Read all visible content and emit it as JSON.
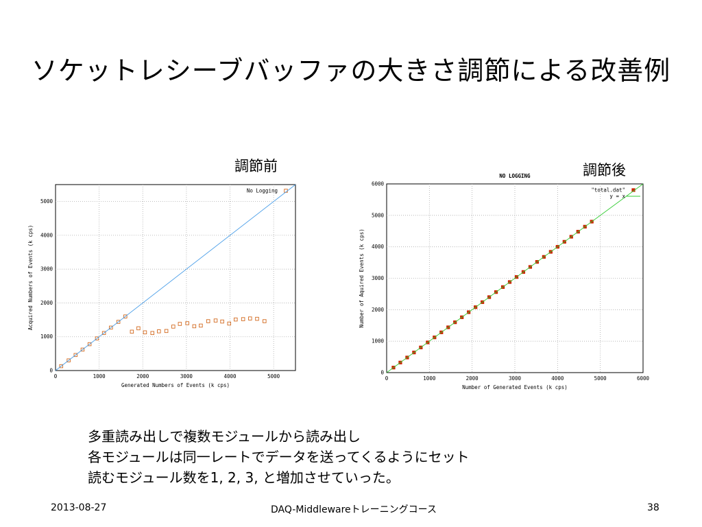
{
  "slide": {
    "title": "ソケットレシーブバッファの大きさ調節による改善例",
    "label_before": "調節前",
    "label_after": "調節後",
    "bullets": [
      "多重読み出しで複数モジュールから読み出し",
      "各モジュールは同一レートでデータを送ってくるようにセット",
      "読むモジュール数を1, 2, 3, と増加させていった。"
    ],
    "footer": {
      "date": "2013-08-27",
      "center": "DAQ-Middlewareトレーニングコース",
      "page": "38"
    }
  },
  "chart_data": [
    {
      "type": "scatter",
      "title": "",
      "xlabel": "Generated Numbers of Events (k cps)",
      "ylabel": "Acquired Numbers of Events (k cps)",
      "xlim": [
        0,
        5500
      ],
      "ylim": [
        0,
        5500
      ],
      "xticks": [
        0,
        1000,
        2000,
        3000,
        4000,
        5000
      ],
      "yticks": [
        0,
        1000,
        2000,
        3000,
        4000,
        5000
      ],
      "grid": true,
      "legend": "top-right",
      "series": [
        {
          "name": "No Logging",
          "color": "#d2691e",
          "marker": "open-square",
          "x": [
            130,
            300,
            460,
            620,
            780,
            950,
            1110,
            1270,
            1440,
            1600,
            1750,
            1900,
            2050,
            2220,
            2370,
            2540,
            2700,
            2850,
            3020,
            3180,
            3330,
            3500,
            3670,
            3820,
            3980,
            4130,
            4300,
            4460,
            4620,
            4790
          ],
          "y": [
            130,
            300,
            460,
            620,
            780,
            950,
            1110,
            1270,
            1440,
            1600,
            1150,
            1250,
            1130,
            1110,
            1160,
            1170,
            1300,
            1380,
            1400,
            1310,
            1330,
            1460,
            1480,
            1450,
            1390,
            1510,
            1520,
            1540,
            1530,
            1460
          ]
        },
        {
          "color": "#4a9ee8",
          "line": "y = x"
        }
      ]
    },
    {
      "type": "scatter",
      "title": "NO LOGGING",
      "xlabel": "Number of Generated Events (k cps)",
      "ylabel": "Number of Aquired Events (k cps)",
      "xlim": [
        0,
        6000
      ],
      "ylim": [
        0,
        6000
      ],
      "xticks": [
        0,
        1000,
        2000,
        3000,
        4000,
        5000,
        6000
      ],
      "yticks": [
        0,
        1000,
        2000,
        3000,
        4000,
        5000,
        6000
      ],
      "grid": true,
      "legend": "top-right",
      "series": [
        {
          "name": "\"total.dat\"",
          "color": "#cc2200",
          "marker": "filled-square",
          "x": [
            160,
            320,
            480,
            640,
            800,
            960,
            1120,
            1280,
            1440,
            1600,
            1760,
            1920,
            2080,
            2240,
            2400,
            2560,
            2720,
            2880,
            3040,
            3200,
            3360,
            3520,
            3680,
            3840,
            4000,
            4160,
            4320,
            4480,
            4640,
            4800
          ],
          "y": [
            160,
            320,
            480,
            640,
            800,
            960,
            1120,
            1280,
            1440,
            1600,
            1760,
            1920,
            2080,
            2240,
            2400,
            2560,
            2720,
            2880,
            3040,
            3200,
            3360,
            3520,
            3680,
            3840,
            4000,
            4160,
            4320,
            4480,
            4640,
            4800
          ]
        },
        {
          "name": "y = x",
          "color": "#33cc33",
          "line": "y = x"
        }
      ]
    }
  ]
}
